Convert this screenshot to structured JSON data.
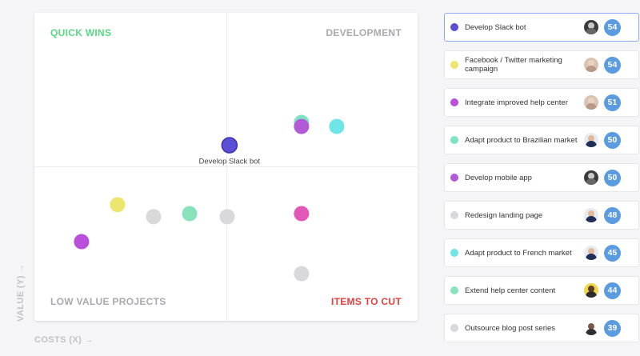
{
  "colors": {
    "quick_wins": "#5cd685",
    "development": "#a9a9ad",
    "low_value": "#a9a9ad",
    "items_to_cut": "#e0413c"
  },
  "quadrants": {
    "quick_wins": "QUICK WINS",
    "development": "DEVELOPMENT",
    "low_value": "LOW VALUE PROJECTS",
    "items_to_cut": "ITEMS TO CUT"
  },
  "axes": {
    "y_label": "VALUE (Y) →",
    "x_label": "COSTS (X) →"
  },
  "chart_data": {
    "type": "scatter",
    "xlim": [
      0,
      100
    ],
    "ylim": [
      0,
      100
    ],
    "points": [
      {
        "x": 50.9,
        "y": 57.0,
        "color": "#5b4fd6",
        "label": "Develop Slack bot",
        "selected": true
      },
      {
        "x": 69.7,
        "y": 64.4,
        "color": "#7de3c3"
      },
      {
        "x": 69.7,
        "y": 63.1,
        "color": "#b25ad7"
      },
      {
        "x": 78.9,
        "y": 63.1,
        "color": "#6fe5e8"
      },
      {
        "x": 21.7,
        "y": 37.7,
        "color": "#ece56e"
      },
      {
        "x": 31.1,
        "y": 33.8,
        "color": "#d9d9db"
      },
      {
        "x": 40.5,
        "y": 34.8,
        "color": "#88e3bd"
      },
      {
        "x": 50.3,
        "y": 33.8,
        "color": "#d9d9db"
      },
      {
        "x": 69.7,
        "y": 34.8,
        "color": "#e357b8"
      },
      {
        "x": 12.3,
        "y": 25.7,
        "color": "#b94fdc"
      },
      {
        "x": 69.7,
        "y": 15.3,
        "color": "#d9d9db"
      }
    ]
  },
  "items": [
    {
      "label": "Develop Slack bot",
      "color": "#5b4fd6",
      "score": "54",
      "avatar": "dark",
      "selected": true
    },
    {
      "label": "Facebook / Twitter marketing campaign",
      "color": "#ece56e",
      "score": "54",
      "avatar": "light"
    },
    {
      "label": "Integrate improved help center",
      "color": "#b94fdc",
      "score": "51",
      "avatar": "light"
    },
    {
      "label": "Adapt product to Brazilian market",
      "color": "#7de3c3",
      "score": "50",
      "avatar": "suit"
    },
    {
      "label": "Develop mobile app",
      "color": "#b25ad7",
      "score": "50",
      "avatar": "dark"
    },
    {
      "label": "Redesign landing page",
      "color": "#d9d9db",
      "score": "48",
      "avatar": "suit"
    },
    {
      "label": "Adapt product to French market",
      "color": "#6fe5e8",
      "score": "45",
      "avatar": "suit"
    },
    {
      "label": "Extend help center content",
      "color": "#88e3bd",
      "score": "44",
      "avatar": "yellow"
    },
    {
      "label": "Outsource blog post series",
      "color": "#d9d9db",
      "score": "39",
      "avatar": "plain"
    }
  ]
}
